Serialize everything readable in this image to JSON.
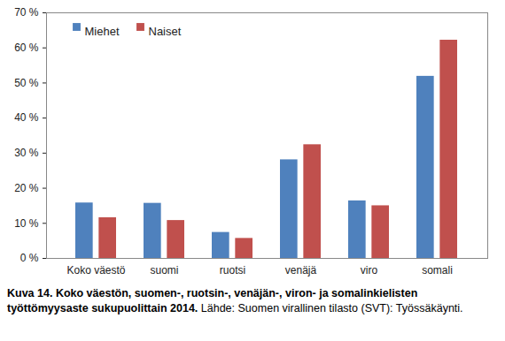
{
  "chart_data": {
    "type": "bar",
    "title": "Kuva 14. Koko väestön, suomen-, ruotsin-, venäjän-, viron- ja somalinkielisten työttömyysaste sukupuolittain 2014.",
    "source": "Lähde: Suomen virallinen tilasto (SVT): Työssäkäynti.",
    "categories": [
      "Koko väestö",
      "suomi",
      "ruotsi",
      "venäjä",
      "viro",
      "somali"
    ],
    "series": [
      {
        "name": "Miehet",
        "color": "#4f81bd",
        "values": [
          15.8,
          15.7,
          7.4,
          28.1,
          16.4,
          51.9
        ]
      },
      {
        "name": "Naiset",
        "color": "#c0504d",
        "values": [
          11.6,
          10.8,
          5.7,
          32.4,
          15.0,
          62.2
        ]
      }
    ],
    "ylim": [
      0,
      70
    ],
    "yticks": [
      {
        "value": 0,
        "label": "0 %"
      },
      {
        "value": 10,
        "label": "10 %"
      },
      {
        "value": 20,
        "label": "20 %"
      },
      {
        "value": 30,
        "label": "30 %"
      },
      {
        "value": 40,
        "label": "40 %"
      },
      {
        "value": 50,
        "label": "50 %"
      },
      {
        "value": 60,
        "label": "60 %"
      },
      {
        "value": 70,
        "label": "70 %"
      }
    ],
    "grid": false,
    "legend": "upper left"
  }
}
